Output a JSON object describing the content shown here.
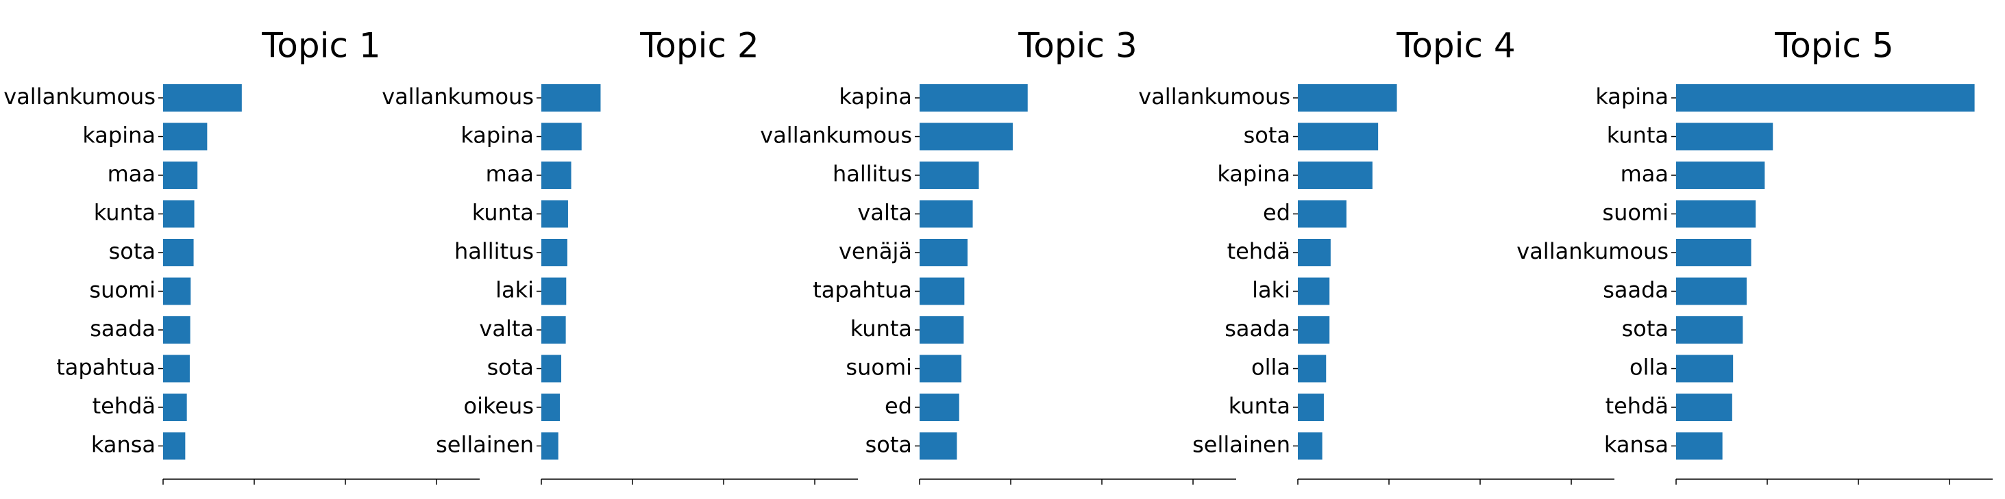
{
  "chart_data": [
    {
      "type": "bar",
      "orientation": "horizontal",
      "title": "Topic 1",
      "categories": [
        "vallankumous",
        "kapina",
        "maa",
        "kunta",
        "sota",
        "suomi",
        "saada",
        "tapahtua",
        "tehdä",
        "kansa"
      ],
      "values": [
        0.0348,
        0.0195,
        0.0152,
        0.0138,
        0.0135,
        0.0122,
        0.012,
        0.0118,
        0.0105,
        0.0098
      ],
      "xlim": [
        0,
        0.14
      ],
      "color": "#1f77b4"
    },
    {
      "type": "bar",
      "orientation": "horizontal",
      "title": "Topic 2",
      "categories": [
        "vallankumous",
        "kapina",
        "maa",
        "kunta",
        "hallitus",
        "laki",
        "valta",
        "sota",
        "oikeus",
        "sellainen"
      ],
      "values": [
        0.0262,
        0.0178,
        0.0132,
        0.0118,
        0.0115,
        0.011,
        0.0108,
        0.0088,
        0.0082,
        0.0075
      ],
      "xlim": [
        0,
        0.14
      ],
      "color": "#1f77b4"
    },
    {
      "type": "bar",
      "orientation": "horizontal",
      "title": "Topic 3",
      "categories": [
        "kapina",
        "vallankumous",
        "hallitus",
        "valta",
        "venäjä",
        "tapahtua",
        "kunta",
        "suomi",
        "ed",
        "sota"
      ],
      "values": [
        0.0478,
        0.0412,
        0.0262,
        0.0235,
        0.0212,
        0.0198,
        0.0195,
        0.0185,
        0.0175,
        0.0165
      ],
      "xlim": [
        0,
        0.14
      ],
      "color": "#1f77b4"
    },
    {
      "type": "bar",
      "orientation": "horizontal",
      "title": "Topic 4",
      "categories": [
        "vallankumous",
        "sota",
        "kapina",
        "ed",
        "tehdä",
        "laki",
        "saada",
        "olla",
        "kunta",
        "sellainen"
      ],
      "values": [
        0.0438,
        0.0355,
        0.033,
        0.0215,
        0.0145,
        0.014,
        0.014,
        0.0125,
        0.0115,
        0.0108
      ],
      "xlim": [
        0,
        0.14
      ],
      "color": "#1f77b4"
    },
    {
      "type": "bar",
      "orientation": "horizontal",
      "title": "Topic 5",
      "categories": [
        "kapina",
        "kunta",
        "maa",
        "suomi",
        "vallankumous",
        "saada",
        "sota",
        "olla",
        "tehdä",
        "kansa"
      ],
      "values": [
        0.132,
        0.0428,
        0.0392,
        0.0352,
        0.0332,
        0.0312,
        0.0295,
        0.0252,
        0.0248,
        0.0205
      ],
      "xlim": [
        0,
        0.14
      ],
      "color": "#1f77b4"
    }
  ]
}
